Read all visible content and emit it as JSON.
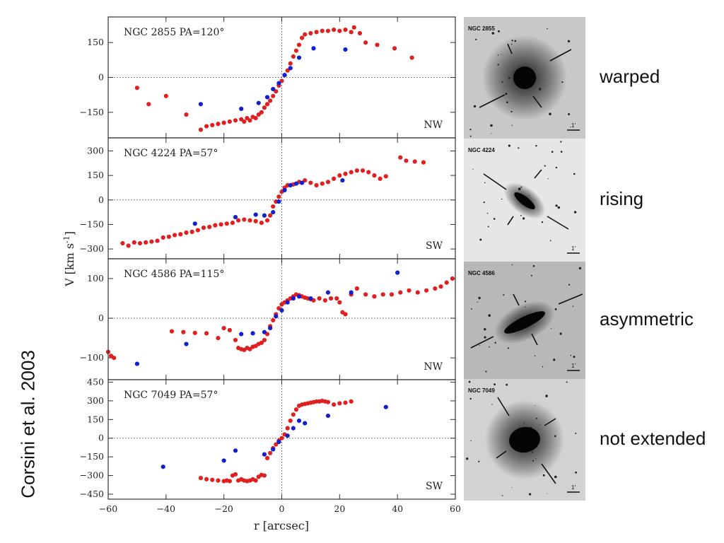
{
  "figure": {
    "credit": "Corsini et al. 2003",
    "ylabel": "V [km s",
    "ylabel_sup": "-1",
    "ylabel_end": "]",
    "xlabel": "r [arcsec]",
    "xticks": [
      "-60",
      "-40",
      "-20",
      "0",
      "20",
      "40",
      "60"
    ]
  },
  "colors": {
    "approaching": "#e02020",
    "receding": "#1020d0",
    "frame": "#333333"
  },
  "chart_data": [
    {
      "type": "scatter",
      "title": "NGC 2855 PA=120°",
      "galaxy": "NGC 2855",
      "direction": "NW",
      "descriptor": "warped",
      "ylim": [
        -260,
        260
      ],
      "yticks": [
        -150,
        0,
        150
      ],
      "xlim": [
        -60,
        60
      ],
      "series": [
        {
          "color": "red",
          "points": [
            [
              -50,
              -45
            ],
            [
              -46,
              -115
            ],
            [
              -40,
              -80
            ],
            [
              -33,
              -160
            ],
            [
              -28,
              -225
            ],
            [
              -26,
              -210
            ],
            [
              -24,
              -205
            ],
            [
              -22,
              -200
            ],
            [
              -20,
              -195
            ],
            [
              -18,
              -190
            ],
            [
              -16,
              -185
            ],
            [
              -14,
              -180
            ],
            [
              -13,
              -190
            ],
            [
              -12,
              -175
            ],
            [
              -11,
              -185
            ],
            [
              -10,
              -170
            ],
            [
              -9,
              -175
            ],
            [
              -8,
              -160
            ],
            [
              -7,
              -150
            ],
            [
              -6,
              -130
            ],
            [
              -5,
              -115
            ],
            [
              -4,
              -100
            ],
            [
              -3,
              -80
            ],
            [
              -2,
              -60
            ],
            [
              -1,
              -35
            ],
            [
              0,
              -15
            ],
            [
              1,
              10
            ],
            [
              2,
              30
            ],
            [
              3,
              60
            ],
            [
              4,
              90
            ],
            [
              5,
              115
            ],
            [
              6,
              140
            ],
            [
              7,
              170
            ],
            [
              8,
              185
            ],
            [
              10,
              190
            ],
            [
              12,
              195
            ],
            [
              14,
              200
            ],
            [
              16,
              200
            ],
            [
              18,
              205
            ],
            [
              20,
              200
            ],
            [
              22,
              205
            ],
            [
              24,
              195
            ],
            [
              25,
              215
            ],
            [
              27,
              190
            ],
            [
              29,
              150
            ],
            [
              33,
              140
            ],
            [
              39,
              125
            ],
            [
              45,
              85
            ]
          ]
        },
        {
          "color": "blue",
          "points": [
            [
              -28,
              -115
            ],
            [
              -14,
              -135
            ],
            [
              -8,
              -110
            ],
            [
              -5,
              -85
            ],
            [
              -3,
              -50
            ],
            [
              -1,
              -25
            ],
            [
              1,
              10
            ],
            [
              3,
              40
            ],
            [
              6,
              85
            ],
            [
              11,
              125
            ],
            [
              22,
              120
            ]
          ]
        }
      ]
    },
    {
      "type": "scatter",
      "title": "NGC 4224 PA=57°",
      "galaxy": "NGC 4224",
      "direction": "SW",
      "descriptor": "rising",
      "ylim": [
        -360,
        380
      ],
      "yticks": [
        -300,
        -150,
        0,
        150,
        300
      ],
      "xlim": [
        -60,
        60
      ],
      "series": [
        {
          "color": "red",
          "points": [
            [
              -55,
              -265
            ],
            [
              -53,
              -280
            ],
            [
              -51,
              -260
            ],
            [
              -49,
              -265
            ],
            [
              -47,
              -260
            ],
            [
              -45,
              -255
            ],
            [
              -43,
              -250
            ],
            [
              -41,
              -230
            ],
            [
              -39,
              -225
            ],
            [
              -37,
              -215
            ],
            [
              -35,
              -210
            ],
            [
              -33,
              -200
            ],
            [
              -31,
              -195
            ],
            [
              -29,
              -185
            ],
            [
              -27,
              -170
            ],
            [
              -25,
              -165
            ],
            [
              -23,
              -155
            ],
            [
              -21,
              -150
            ],
            [
              -19,
              -145
            ],
            [
              -17,
              -140
            ],
            [
              -15,
              -125
            ],
            [
              -13,
              -120
            ],
            [
              -11,
              -125
            ],
            [
              -9,
              -130
            ],
            [
              -7,
              -140
            ],
            [
              -5,
              -125
            ],
            [
              -4,
              -95
            ],
            [
              -3,
              -40
            ],
            [
              -2,
              -10
            ],
            [
              -1,
              20
            ],
            [
              0,
              50
            ],
            [
              1,
              75
            ],
            [
              2,
              90
            ],
            [
              4,
              95
            ],
            [
              6,
              110
            ],
            [
              8,
              120
            ],
            [
              10,
              105
            ],
            [
              12,
              90
            ],
            [
              14,
              100
            ],
            [
              16,
              110
            ],
            [
              18,
              130
            ],
            [
              20,
              150
            ],
            [
              22,
              160
            ],
            [
              24,
              170
            ],
            [
              26,
              180
            ],
            [
              28,
              180
            ],
            [
              30,
              170
            ],
            [
              32,
              150
            ],
            [
              34,
              130
            ],
            [
              36,
              145
            ],
            [
              41,
              260
            ],
            [
              43,
              240
            ],
            [
              46,
              235
            ],
            [
              49,
              230
            ]
          ]
        },
        {
          "color": "blue",
          "points": [
            [
              -30,
              -145
            ],
            [
              -16,
              -105
            ],
            [
              -9,
              -90
            ],
            [
              -6,
              -95
            ],
            [
              -3,
              -75
            ],
            [
              -1,
              -10
            ],
            [
              1,
              60
            ],
            [
              3,
              90
            ],
            [
              5,
              100
            ],
            [
              7,
              105
            ],
            [
              21,
              120
            ]
          ]
        }
      ]
    },
    {
      "type": "scatter",
      "title": "NGC 4586 PA=115°",
      "galaxy": "NGC 4586",
      "direction": "NW",
      "descriptor": "asymmetric",
      "ylim": [
        -155,
        150
      ],
      "yticks": [
        -100,
        0,
        100
      ],
      "xlim": [
        -60,
        60
      ],
      "series": [
        {
          "color": "red",
          "points": [
            [
              -60,
              -85
            ],
            [
              -59,
              -95
            ],
            [
              -58,
              -100
            ],
            [
              -38,
              -33
            ],
            [
              -34,
              -35
            ],
            [
              -30,
              -37
            ],
            [
              -26,
              -38
            ],
            [
              -22,
              -50
            ],
            [
              -20,
              -25
            ],
            [
              -18,
              -30
            ],
            [
              -16,
              -55
            ],
            [
              -15,
              -75
            ],
            [
              -14,
              -78
            ],
            [
              -13,
              -80
            ],
            [
              -12,
              -75
            ],
            [
              -11,
              -78
            ],
            [
              -10,
              -72
            ],
            [
              -9,
              -70
            ],
            [
              -8,
              -65
            ],
            [
              -7,
              -62
            ],
            [
              -6,
              -55
            ],
            [
              -5,
              -40
            ],
            [
              -4,
              -20
            ],
            [
              -3,
              -5
            ],
            [
              -2,
              10
            ],
            [
              -1,
              25
            ],
            [
              0,
              35
            ],
            [
              1,
              40
            ],
            [
              2,
              45
            ],
            [
              3,
              50
            ],
            [
              4,
              55
            ],
            [
              5,
              60
            ],
            [
              6,
              58
            ],
            [
              7,
              55
            ],
            [
              8,
              52
            ],
            [
              9,
              50
            ],
            [
              10,
              48
            ],
            [
              11,
              45
            ],
            [
              13,
              50
            ],
            [
              15,
              45
            ],
            [
              17,
              50
            ],
            [
              19,
              50
            ],
            [
              20,
              40
            ],
            [
              21,
              15
            ],
            [
              22,
              10
            ],
            [
              24,
              60
            ],
            [
              26,
              75
            ],
            [
              29,
              60
            ],
            [
              32,
              55
            ],
            [
              35,
              60
            ],
            [
              38,
              60
            ],
            [
              41,
              65
            ],
            [
              44,
              70
            ],
            [
              47,
              65
            ],
            [
              50,
              70
            ],
            [
              53,
              75
            ],
            [
              55,
              80
            ],
            [
              57,
              90
            ],
            [
              59,
              100
            ]
          ]
        },
        {
          "color": "blue",
          "points": [
            [
              -50,
              -115
            ],
            [
              -33,
              -65
            ],
            [
              -14,
              -40
            ],
            [
              -10,
              -38
            ],
            [
              -6,
              -35
            ],
            [
              -4,
              -25
            ],
            [
              -2,
              5
            ],
            [
              0,
              20
            ],
            [
              2,
              40
            ],
            [
              4,
              50
            ],
            [
              6,
              55
            ],
            [
              10,
              50
            ],
            [
              16,
              65
            ],
            [
              24,
              65
            ],
            [
              40,
              115
            ]
          ]
        }
      ]
    },
    {
      "type": "scatter",
      "title": "NGC 7049 PA=57°",
      "galaxy": "NGC 7049",
      "direction": "SW",
      "descriptor": "not extended",
      "ylim": [
        -490,
        470
      ],
      "yticks": [
        -450,
        -300,
        -150,
        0,
        150,
        300,
        450
      ],
      "xlim": [
        -60,
        60
      ],
      "series": [
        {
          "color": "red",
          "points": [
            [
              -28,
              -320
            ],
            [
              -26,
              -330
            ],
            [
              -24,
              -335
            ],
            [
              -22,
              -340
            ],
            [
              -20,
              -345
            ],
            [
              -19,
              -340
            ],
            [
              -18,
              -345
            ],
            [
              -17,
              -300
            ],
            [
              -16,
              -290
            ],
            [
              -15,
              -340
            ],
            [
              -14,
              -330
            ],
            [
              -13,
              -340
            ],
            [
              -12,
              -345
            ],
            [
              -11,
              -340
            ],
            [
              -10,
              -330
            ],
            [
              -9,
              -340
            ],
            [
              -8,
              -310
            ],
            [
              -7,
              -295
            ],
            [
              -6,
              -300
            ],
            [
              -5,
              -160
            ],
            [
              -4,
              -120
            ],
            [
              -3,
              -80
            ],
            [
              -2,
              -50
            ],
            [
              -1,
              -20
            ],
            [
              0,
              0
            ],
            [
              1,
              30
            ],
            [
              2,
              80
            ],
            [
              3,
              140
            ],
            [
              4,
              190
            ],
            [
              5,
              230
            ],
            [
              6,
              260
            ],
            [
              7,
              270
            ],
            [
              8,
              275
            ],
            [
              9,
              280
            ],
            [
              10,
              285
            ],
            [
              11,
              290
            ],
            [
              12,
              295
            ],
            [
              13,
              295
            ],
            [
              14,
              300
            ],
            [
              15,
              295
            ],
            [
              16,
              290
            ],
            [
              18,
              270
            ],
            [
              20,
              280
            ],
            [
              22,
              285
            ],
            [
              24,
              295
            ]
          ]
        },
        {
          "color": "blue",
          "points": [
            [
              -41,
              -230
            ],
            [
              -20,
              -180
            ],
            [
              -16,
              -100
            ],
            [
              -6,
              -130
            ],
            [
              -3,
              -90
            ],
            [
              -1,
              -30
            ],
            [
              2,
              20
            ],
            [
              4,
              80
            ],
            [
              6,
              140
            ],
            [
              8,
              120
            ],
            [
              16,
              180
            ],
            [
              36,
              250
            ]
          ]
        }
      ]
    }
  ]
}
